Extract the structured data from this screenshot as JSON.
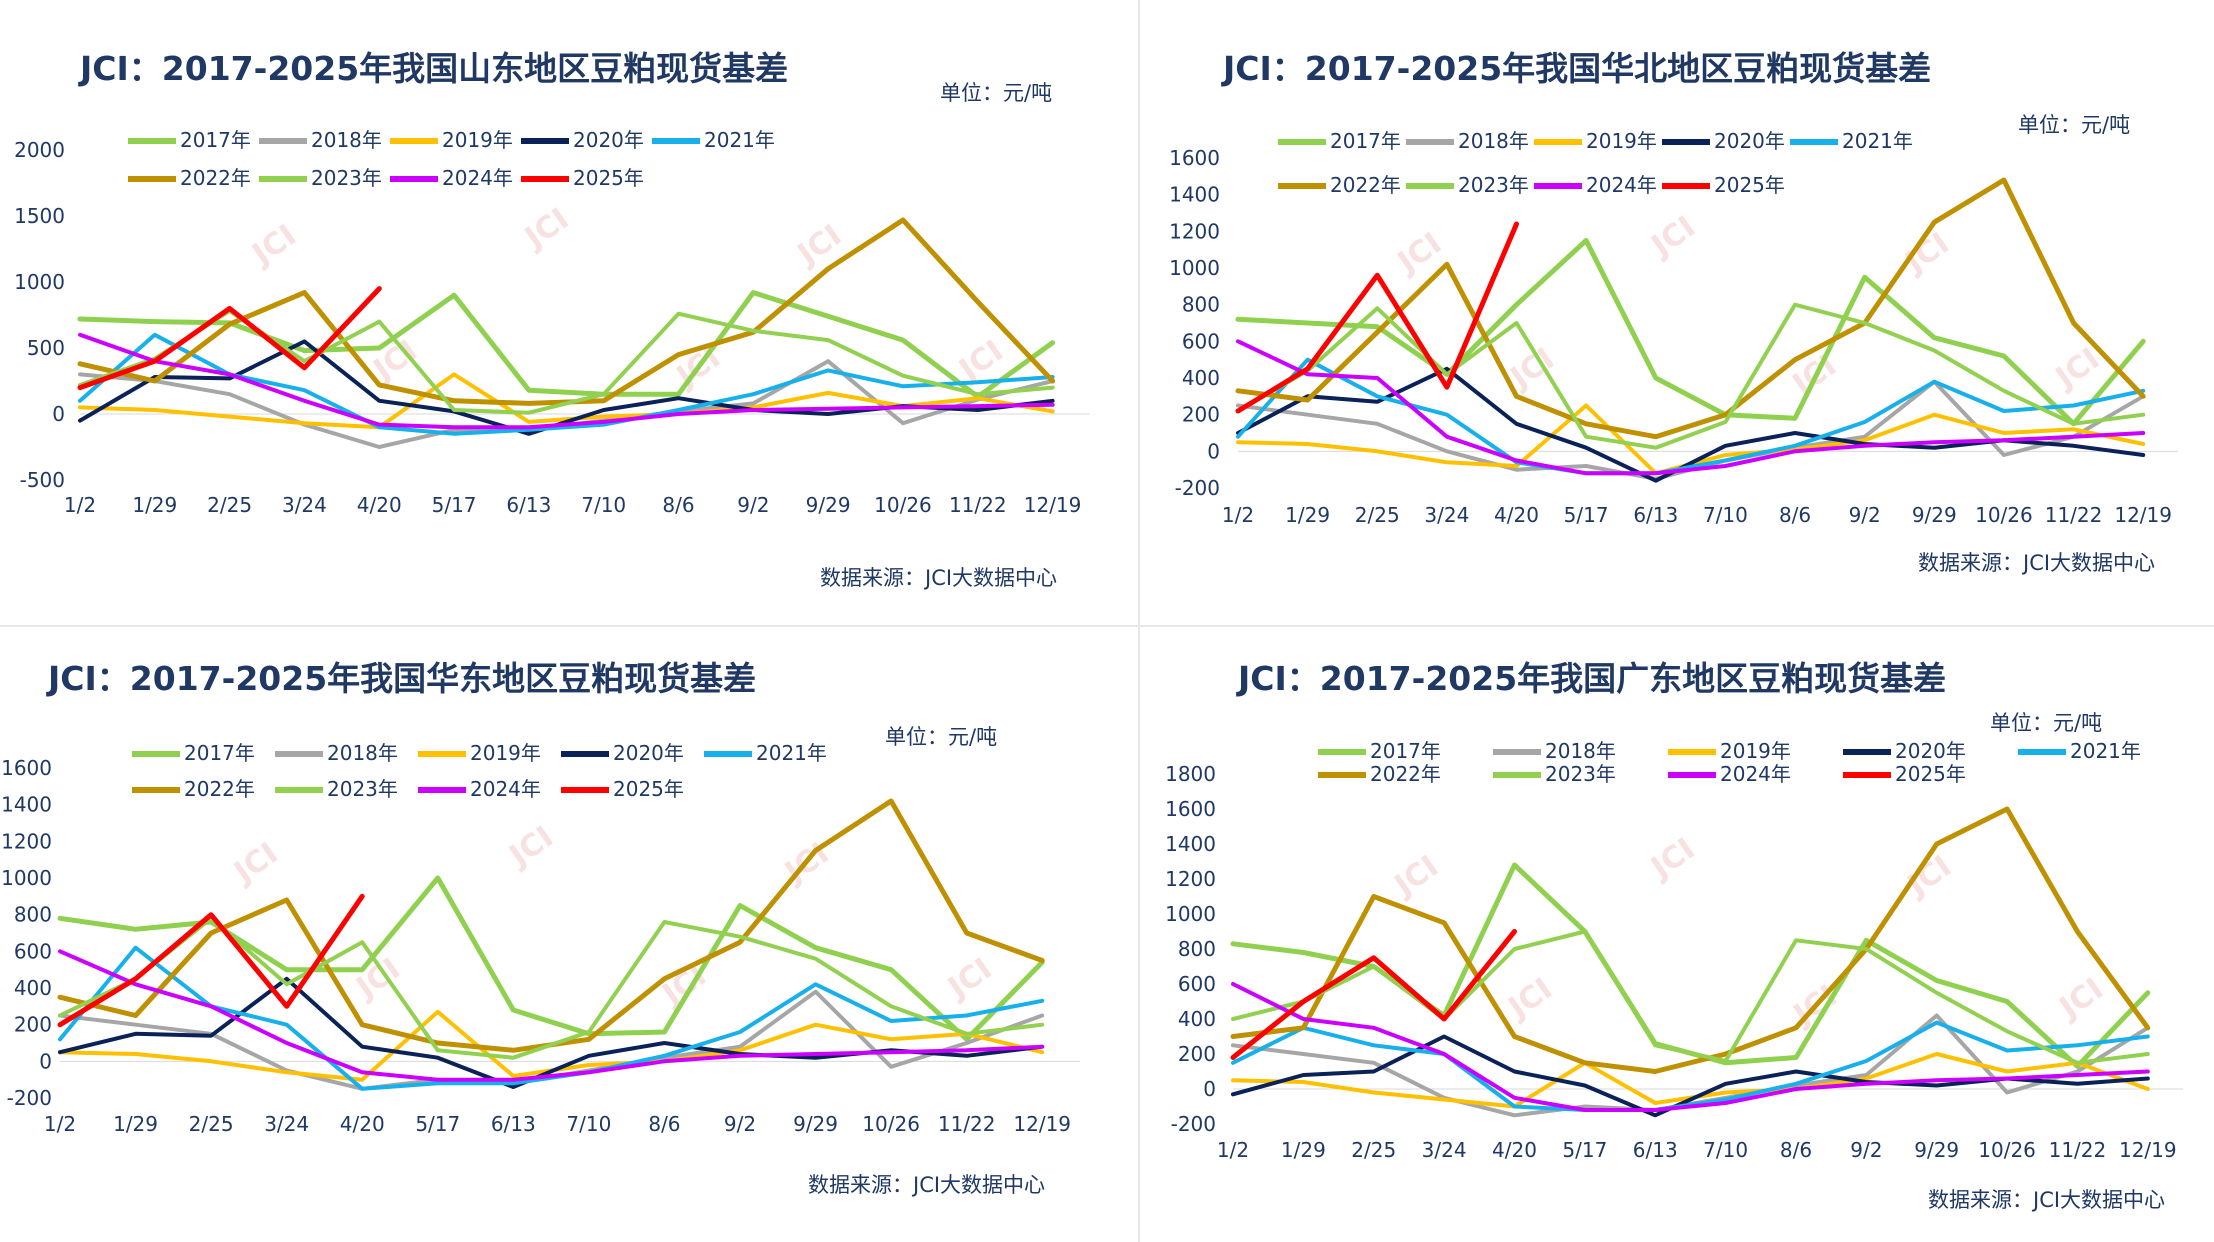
{
  "legend_colors": {
    "2017年": "#8fd14f",
    "2018年": "#a6a6a6",
    "2019年": "#ffc000",
    "2020年": "#0a2258",
    "2021年": "#17b0ea",
    "2022年": "#bf9000",
    "2023年": "#92d050",
    "2024年": "#cc00ff",
    "2025年": "#ff0000"
  },
  "watermark": "JCI",
  "chart_data": [
    {
      "type": "line",
      "title": "JCI：2017-2025年我国山东地区豆粕现货基差",
      "unit": "单位：元/吨",
      "source": "数据来源：JCI大数据中心",
      "categories": [
        "1/2",
        "1/29",
        "2/25",
        "3/24",
        "4/20",
        "5/17",
        "6/13",
        "7/10",
        "8/6",
        "9/2",
        "9/29",
        "10/26",
        "11/22",
        "12/19"
      ],
      "ylim": [
        -500,
        2000
      ],
      "yticks": [
        2000,
        1500,
        1000,
        500,
        0,
        -500
      ],
      "legend": [
        "2017年",
        "2018年",
        "2019年",
        "2020年",
        "2021年",
        "2022年",
        "2023年",
        "2024年",
        "2025年"
      ],
      "series": [
        {
          "name": "2017年",
          "values": [
            720,
            700,
            690,
            480,
            500,
            900,
            180,
            150,
            150,
            920,
            740,
            560,
            130,
            540
          ]
        },
        {
          "name": "2018年",
          "values": [
            300,
            250,
            150,
            -80,
            -250,
            -120,
            -120,
            -50,
            20,
            80,
            400,
            -70,
            110,
            250
          ]
        },
        {
          "name": "2019年",
          "values": [
            50,
            30,
            -20,
            -70,
            -100,
            300,
            -60,
            -20,
            0,
            50,
            160,
            60,
            120,
            20
          ]
        },
        {
          "name": "2020年",
          "values": [
            -50,
            280,
            270,
            550,
            100,
            20,
            -150,
            30,
            120,
            30,
            0,
            60,
            30,
            100
          ]
        },
        {
          "name": "2021年",
          "values": [
            100,
            600,
            300,
            180,
            -100,
            -150,
            -120,
            -80,
            30,
            150,
            330,
            210,
            240,
            280
          ]
        },
        {
          "name": "2022年",
          "values": [
            380,
            250,
            680,
            920,
            220,
            100,
            80,
            100,
            450,
            620,
            1100,
            1470,
            850,
            250
          ]
        },
        {
          "name": "2023年",
          "values": [
            220,
            420,
            780,
            400,
            700,
            30,
            10,
            150,
            760,
            630,
            560,
            290,
            150,
            200
          ]
        },
        {
          "name": "2024年",
          "values": [
            600,
            400,
            300,
            100,
            -80,
            -100,
            -100,
            -60,
            0,
            30,
            40,
            50,
            60,
            70
          ]
        },
        {
          "name": "2025年",
          "values": [
            200,
            400,
            800,
            350,
            950,
            null,
            null,
            null,
            null,
            null,
            null,
            null,
            null,
            null
          ]
        }
      ]
    },
    {
      "type": "line",
      "title": "JCI：2017-2025年我国华北地区豆粕现货基差",
      "unit": "单位：元/吨",
      "source": "数据来源：JCI大数据中心",
      "categories": [
        "1/2",
        "1/29",
        "2/25",
        "3/24",
        "4/20",
        "5/17",
        "6/13",
        "7/10",
        "8/6",
        "9/2",
        "9/29",
        "10/26",
        "11/22",
        "12/19"
      ],
      "ylim": [
        -200,
        1600
      ],
      "yticks": [
        1600,
        1400,
        1200,
        1000,
        800,
        600,
        400,
        200,
        0,
        -200
      ],
      "legend": [
        "2017年",
        "2018年",
        "2019年",
        "2020年",
        "2021年",
        "2022年",
        "2023年",
        "2024年",
        "2025年"
      ],
      "series": [
        {
          "name": "2017年",
          "values": [
            720,
            700,
            680,
            420,
            800,
            1150,
            400,
            200,
            180,
            950,
            620,
            520,
            150,
            600
          ]
        },
        {
          "name": "2018年",
          "values": [
            250,
            200,
            150,
            0,
            -100,
            -80,
            -150,
            -50,
            20,
            80,
            380,
            -20,
            80,
            300
          ]
        },
        {
          "name": "2019年",
          "values": [
            50,
            40,
            0,
            -60,
            -80,
            250,
            -120,
            -20,
            10,
            60,
            200,
            100,
            120,
            40
          ]
        },
        {
          "name": "2020年",
          "values": [
            100,
            300,
            270,
            450,
            150,
            20,
            -160,
            30,
            100,
            40,
            20,
            60,
            30,
            -20
          ]
        },
        {
          "name": "2021年",
          "values": [
            80,
            500,
            300,
            200,
            -60,
            -120,
            -120,
            -50,
            30,
            160,
            380,
            220,
            250,
            330
          ]
        },
        {
          "name": "2022年",
          "values": [
            330,
            280,
            650,
            1020,
            300,
            150,
            80,
            200,
            500,
            700,
            1250,
            1480,
            700,
            300
          ]
        },
        {
          "name": "2023年",
          "values": [
            220,
            440,
            780,
            420,
            700,
            80,
            20,
            160,
            800,
            700,
            550,
            330,
            150,
            200
          ]
        },
        {
          "name": "2024年",
          "values": [
            600,
            420,
            400,
            80,
            -50,
            -120,
            -120,
            -80,
            0,
            30,
            50,
            60,
            80,
            100
          ]
        },
        {
          "name": "2025年",
          "values": [
            220,
            450,
            960,
            350,
            1240,
            null,
            null,
            null,
            null,
            null,
            null,
            null,
            null,
            null
          ]
        }
      ]
    },
    {
      "type": "line",
      "title": "JCI：2017-2025年我国华东地区豆粕现货基差",
      "unit": "单位：元/吨",
      "source": "数据来源：JCI大数据中心",
      "categories": [
        "1/2",
        "1/29",
        "2/25",
        "3/24",
        "4/20",
        "5/17",
        "6/13",
        "7/10",
        "8/6",
        "9/2",
        "9/29",
        "10/26",
        "11/22",
        "12/19"
      ],
      "ylim": [
        -200,
        1600
      ],
      "yticks": [
        1600,
        1400,
        1200,
        1000,
        800,
        600,
        400,
        200,
        0,
        -200
      ],
      "legend": [
        "2017年",
        "2018年",
        "2019年",
        "2020年",
        "2021年",
        "2022年",
        "2023年",
        "2024年",
        "2025年"
      ],
      "series": [
        {
          "name": "2017年",
          "values": [
            780,
            720,
            760,
            500,
            500,
            1000,
            280,
            150,
            160,
            850,
            620,
            500,
            120,
            540
          ]
        },
        {
          "name": "2018年",
          "values": [
            250,
            200,
            150,
            -50,
            -150,
            -100,
            -120,
            -50,
            20,
            80,
            380,
            -30,
            100,
            250
          ]
        },
        {
          "name": "2019年",
          "values": [
            50,
            40,
            0,
            -60,
            -100,
            270,
            -80,
            -20,
            0,
            60,
            200,
            120,
            150,
            50
          ]
        },
        {
          "name": "2020年",
          "values": [
            50,
            150,
            140,
            450,
            80,
            20,
            -140,
            30,
            100,
            40,
            20,
            60,
            30,
            80
          ]
        },
        {
          "name": "2021年",
          "values": [
            120,
            620,
            300,
            200,
            -150,
            -120,
            -120,
            -60,
            30,
            160,
            420,
            220,
            250,
            330
          ]
        },
        {
          "name": "2022年",
          "values": [
            350,
            250,
            700,
            880,
            200,
            100,
            60,
            120,
            450,
            650,
            1150,
            1420,
            700,
            550
          ]
        },
        {
          "name": "2023年",
          "values": [
            250,
            450,
            780,
            420,
            650,
            60,
            20,
            160,
            760,
            680,
            560,
            300,
            150,
            200
          ]
        },
        {
          "name": "2024年",
          "values": [
            600,
            420,
            300,
            100,
            -60,
            -100,
            -100,
            -60,
            0,
            30,
            40,
            50,
            60,
            80
          ]
        },
        {
          "name": "2025年",
          "values": [
            200,
            450,
            800,
            300,
            900,
            null,
            null,
            null,
            null,
            null,
            null,
            null,
            null,
            null
          ]
        }
      ]
    },
    {
      "type": "line",
      "title": "JCI：2017-2025年我国广东地区豆粕现货基差",
      "unit": "单位：元/吨",
      "source": "数据来源：JCI大数据中心",
      "categories": [
        "1/2",
        "1/29",
        "2/25",
        "3/24",
        "4/20",
        "5/17",
        "6/13",
        "7/10",
        "8/6",
        "9/2",
        "9/29",
        "10/26",
        "11/22",
        "12/19"
      ],
      "ylim": [
        -200,
        1800
      ],
      "yticks": [
        1800,
        1600,
        1400,
        1200,
        1000,
        800,
        600,
        400,
        200,
        0,
        -200
      ],
      "legend": [
        "2017年",
        "2018年",
        "2019年",
        "2020年",
        "2021年",
        "2022年",
        "2023年",
        "2024年",
        "2025年"
      ],
      "series": [
        {
          "name": "2017年",
          "values": [
            830,
            780,
            700,
            420,
            1280,
            900,
            260,
            150,
            180,
            850,
            620,
            500,
            130,
            550
          ]
        },
        {
          "name": "2018年",
          "values": [
            250,
            200,
            150,
            -50,
            -150,
            -100,
            -120,
            -50,
            20,
            80,
            420,
            -20,
            100,
            350
          ]
        },
        {
          "name": "2019年",
          "values": [
            50,
            40,
            -20,
            -60,
            -100,
            150,
            -80,
            -20,
            0,
            60,
            200,
            100,
            150,
            0
          ]
        },
        {
          "name": "2020年",
          "values": [
            -30,
            80,
            100,
            300,
            100,
            20,
            -150,
            30,
            100,
            40,
            20,
            60,
            30,
            60
          ]
        },
        {
          "name": "2021年",
          "values": [
            150,
            350,
            250,
            200,
            -100,
            -120,
            -120,
            -60,
            30,
            160,
            380,
            220,
            250,
            300
          ]
        },
        {
          "name": "2022年",
          "values": [
            300,
            350,
            1100,
            950,
            300,
            150,
            100,
            200,
            350,
            800,
            1400,
            1600,
            900,
            350
          ]
        },
        {
          "name": "2023年",
          "values": [
            400,
            500,
            700,
            400,
            800,
            900,
            250,
            160,
            850,
            800,
            550,
            330,
            150,
            200
          ]
        },
        {
          "name": "2024年",
          "values": [
            600,
            400,
            350,
            200,
            -50,
            -120,
            -120,
            -80,
            0,
            30,
            50,
            60,
            80,
            100
          ]
        },
        {
          "name": "2025年",
          "values": [
            180,
            500,
            750,
            400,
            900,
            null,
            null,
            null,
            null,
            null,
            null,
            null,
            null,
            null
          ]
        }
      ]
    }
  ]
}
